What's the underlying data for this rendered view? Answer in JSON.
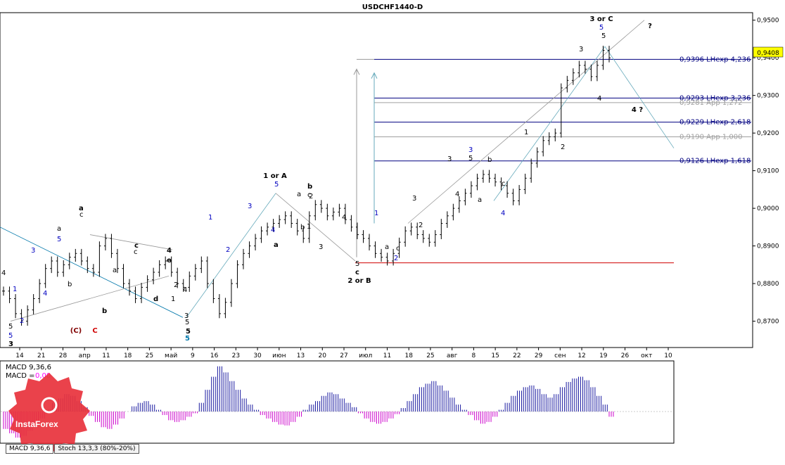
{
  "window": {
    "title": "USDCHF1440-D"
  },
  "price_axis": {
    "ticks": [
      "0,9500",
      "0,9400",
      "0,9300",
      "0,9200",
      "0,9100",
      "0,9000",
      "0,8900",
      "0,8800",
      "0,8700"
    ],
    "current_price": "0,9408"
  },
  "time_axis": {
    "ticks": [
      "14",
      "21",
      "28",
      "апр",
      "11",
      "18",
      "25",
      "май",
      "9",
      "16",
      "23",
      "30",
      "июн",
      "13",
      "20",
      "27",
      "июл",
      "11",
      "18",
      "25",
      "авг",
      "8",
      "15",
      "22",
      "29",
      "сен",
      "12",
      "19",
      "26",
      "окт",
      "10"
    ]
  },
  "levels": [
    {
      "label": "0,9396 LHexp 4,236",
      "price": 0.9396,
      "color": "#000080"
    },
    {
      "label": "0,9293 LHexp 3,236",
      "price": 0.9293,
      "color": "#000080"
    },
    {
      "label": "0,9281 App 1,272",
      "price": 0.9281,
      "color": "#a0a0a0"
    },
    {
      "label": "0,9229 LHexp 2,618",
      "price": 0.9229,
      "color": "#000080"
    },
    {
      "label": "0,9190 App 1,000",
      "price": 0.919,
      "color": "#a0a0a0"
    },
    {
      "label": "0,9126 LHexp 1,618",
      "price": 0.9126,
      "color": "#000080"
    }
  ],
  "wave_labels": [
    {
      "text": "3 or C",
      "color": "#000000",
      "bold": true
    },
    {
      "text": "5",
      "color": "#0000c0"
    },
    {
      "text": "?",
      "color": "#000000",
      "bold": true
    },
    {
      "text": "4 ?",
      "color": "#000000",
      "bold": true
    },
    {
      "text": "1 or A",
      "color": "#000000",
      "bold": true
    },
    {
      "text": "2 or B",
      "color": "#000000",
      "bold": true
    },
    {
      "text": "(C)",
      "color": "#800000",
      "bold": true
    },
    {
      "text": "C",
      "color": "#d00000",
      "bold": true
    }
  ],
  "indicator": {
    "line1": "MACD 9,36,6",
    "line2_prefix": "MACD =",
    "line2_value": "0,00",
    "tabs": [
      "MACD 9,36,6",
      "Stoch 13,3,3 (80%-20%)"
    ]
  },
  "brand": {
    "name": "InstaForex"
  },
  "chart_data": {
    "type": "line",
    "title": "USDCHF1440-D",
    "ylim": [
      0.863,
      0.952
    ],
    "candles": [
      0.878,
      0.876,
      0.872,
      0.87,
      0.873,
      0.876,
      0.88,
      0.884,
      0.886,
      0.883,
      0.885,
      0.887,
      0.888,
      0.886,
      0.884,
      0.883,
      0.89,
      0.892,
      0.888,
      0.884,
      0.88,
      0.878,
      0.876,
      0.879,
      0.881,
      0.883,
      0.885,
      0.886,
      0.883,
      0.88,
      0.879,
      0.882,
      0.884,
      0.886,
      0.88,
      0.876,
      0.872,
      0.875,
      0.88,
      0.885,
      0.888,
      0.89,
      0.892,
      0.894,
      0.895,
      0.896,
      0.897,
      0.898,
      0.896,
      0.894,
      0.892,
      0.898,
      0.901,
      0.9,
      0.898,
      0.899,
      0.9,
      0.897,
      0.895,
      0.893,
      0.892,
      0.89,
      0.888,
      0.887,
      0.886,
      0.888,
      0.891,
      0.894,
      0.895,
      0.893,
      0.892,
      0.891,
      0.893,
      0.896,
      0.898,
      0.9,
      0.902,
      0.904,
      0.906,
      0.908,
      0.909,
      0.908,
      0.907,
      0.906,
      0.904,
      0.902,
      0.905,
      0.908,
      0.912,
      0.915,
      0.918,
      0.919,
      0.92,
      0.932,
      0.934,
      0.936,
      0.938,
      0.937,
      0.935,
      0.938,
      0.942,
      0.94
    ],
    "macd_histogram": [
      -0.002,
      -0.0025,
      -0.003,
      -0.0028,
      -0.0022,
      -0.0015,
      -0.0008,
      0.0002,
      0.001,
      0.0015,
      0.002,
      0.0018,
      0.0012,
      0.0005,
      -0.0005,
      -0.0012,
      -0.0018,
      -0.002,
      -0.0015,
      -0.0008,
      0.0,
      0.0006,
      0.001,
      0.0012,
      0.0008,
      0.0002,
      -0.0004,
      -0.001,
      -0.0012,
      -0.001,
      -0.0006,
      -0.0002,
      0.001,
      0.0025,
      0.004,
      0.0052,
      0.0045,
      0.0035,
      0.0025,
      0.0015,
      0.0008,
      0.0002,
      -0.0004,
      -0.0008,
      -0.0012,
      -0.0015,
      -0.0016,
      -0.0012,
      -0.0006,
      0.0002,
      0.0008,
      0.0012,
      0.0018,
      0.0022,
      0.002,
      0.0015,
      0.001,
      0.0005,
      -0.0002,
      -0.0008,
      -0.0012,
      -0.0014,
      -0.0012,
      -0.0008,
      -0.0003,
      0.0004,
      0.0012,
      0.002,
      0.0028,
      0.0032,
      0.0035,
      0.003,
      0.0024,
      0.0016,
      0.0008,
      0.0002,
      -0.0004,
      -0.001,
      -0.0014,
      -0.0012,
      -0.0006,
      0.0002,
      0.001,
      0.0018,
      0.0024,
      0.0028,
      0.003,
      0.0026,
      0.002,
      0.0016,
      0.002,
      0.0028,
      0.0034,
      0.0038,
      0.004,
      0.0036,
      0.0028,
      0.0018,
      0.0008,
      -0.0006
    ]
  }
}
